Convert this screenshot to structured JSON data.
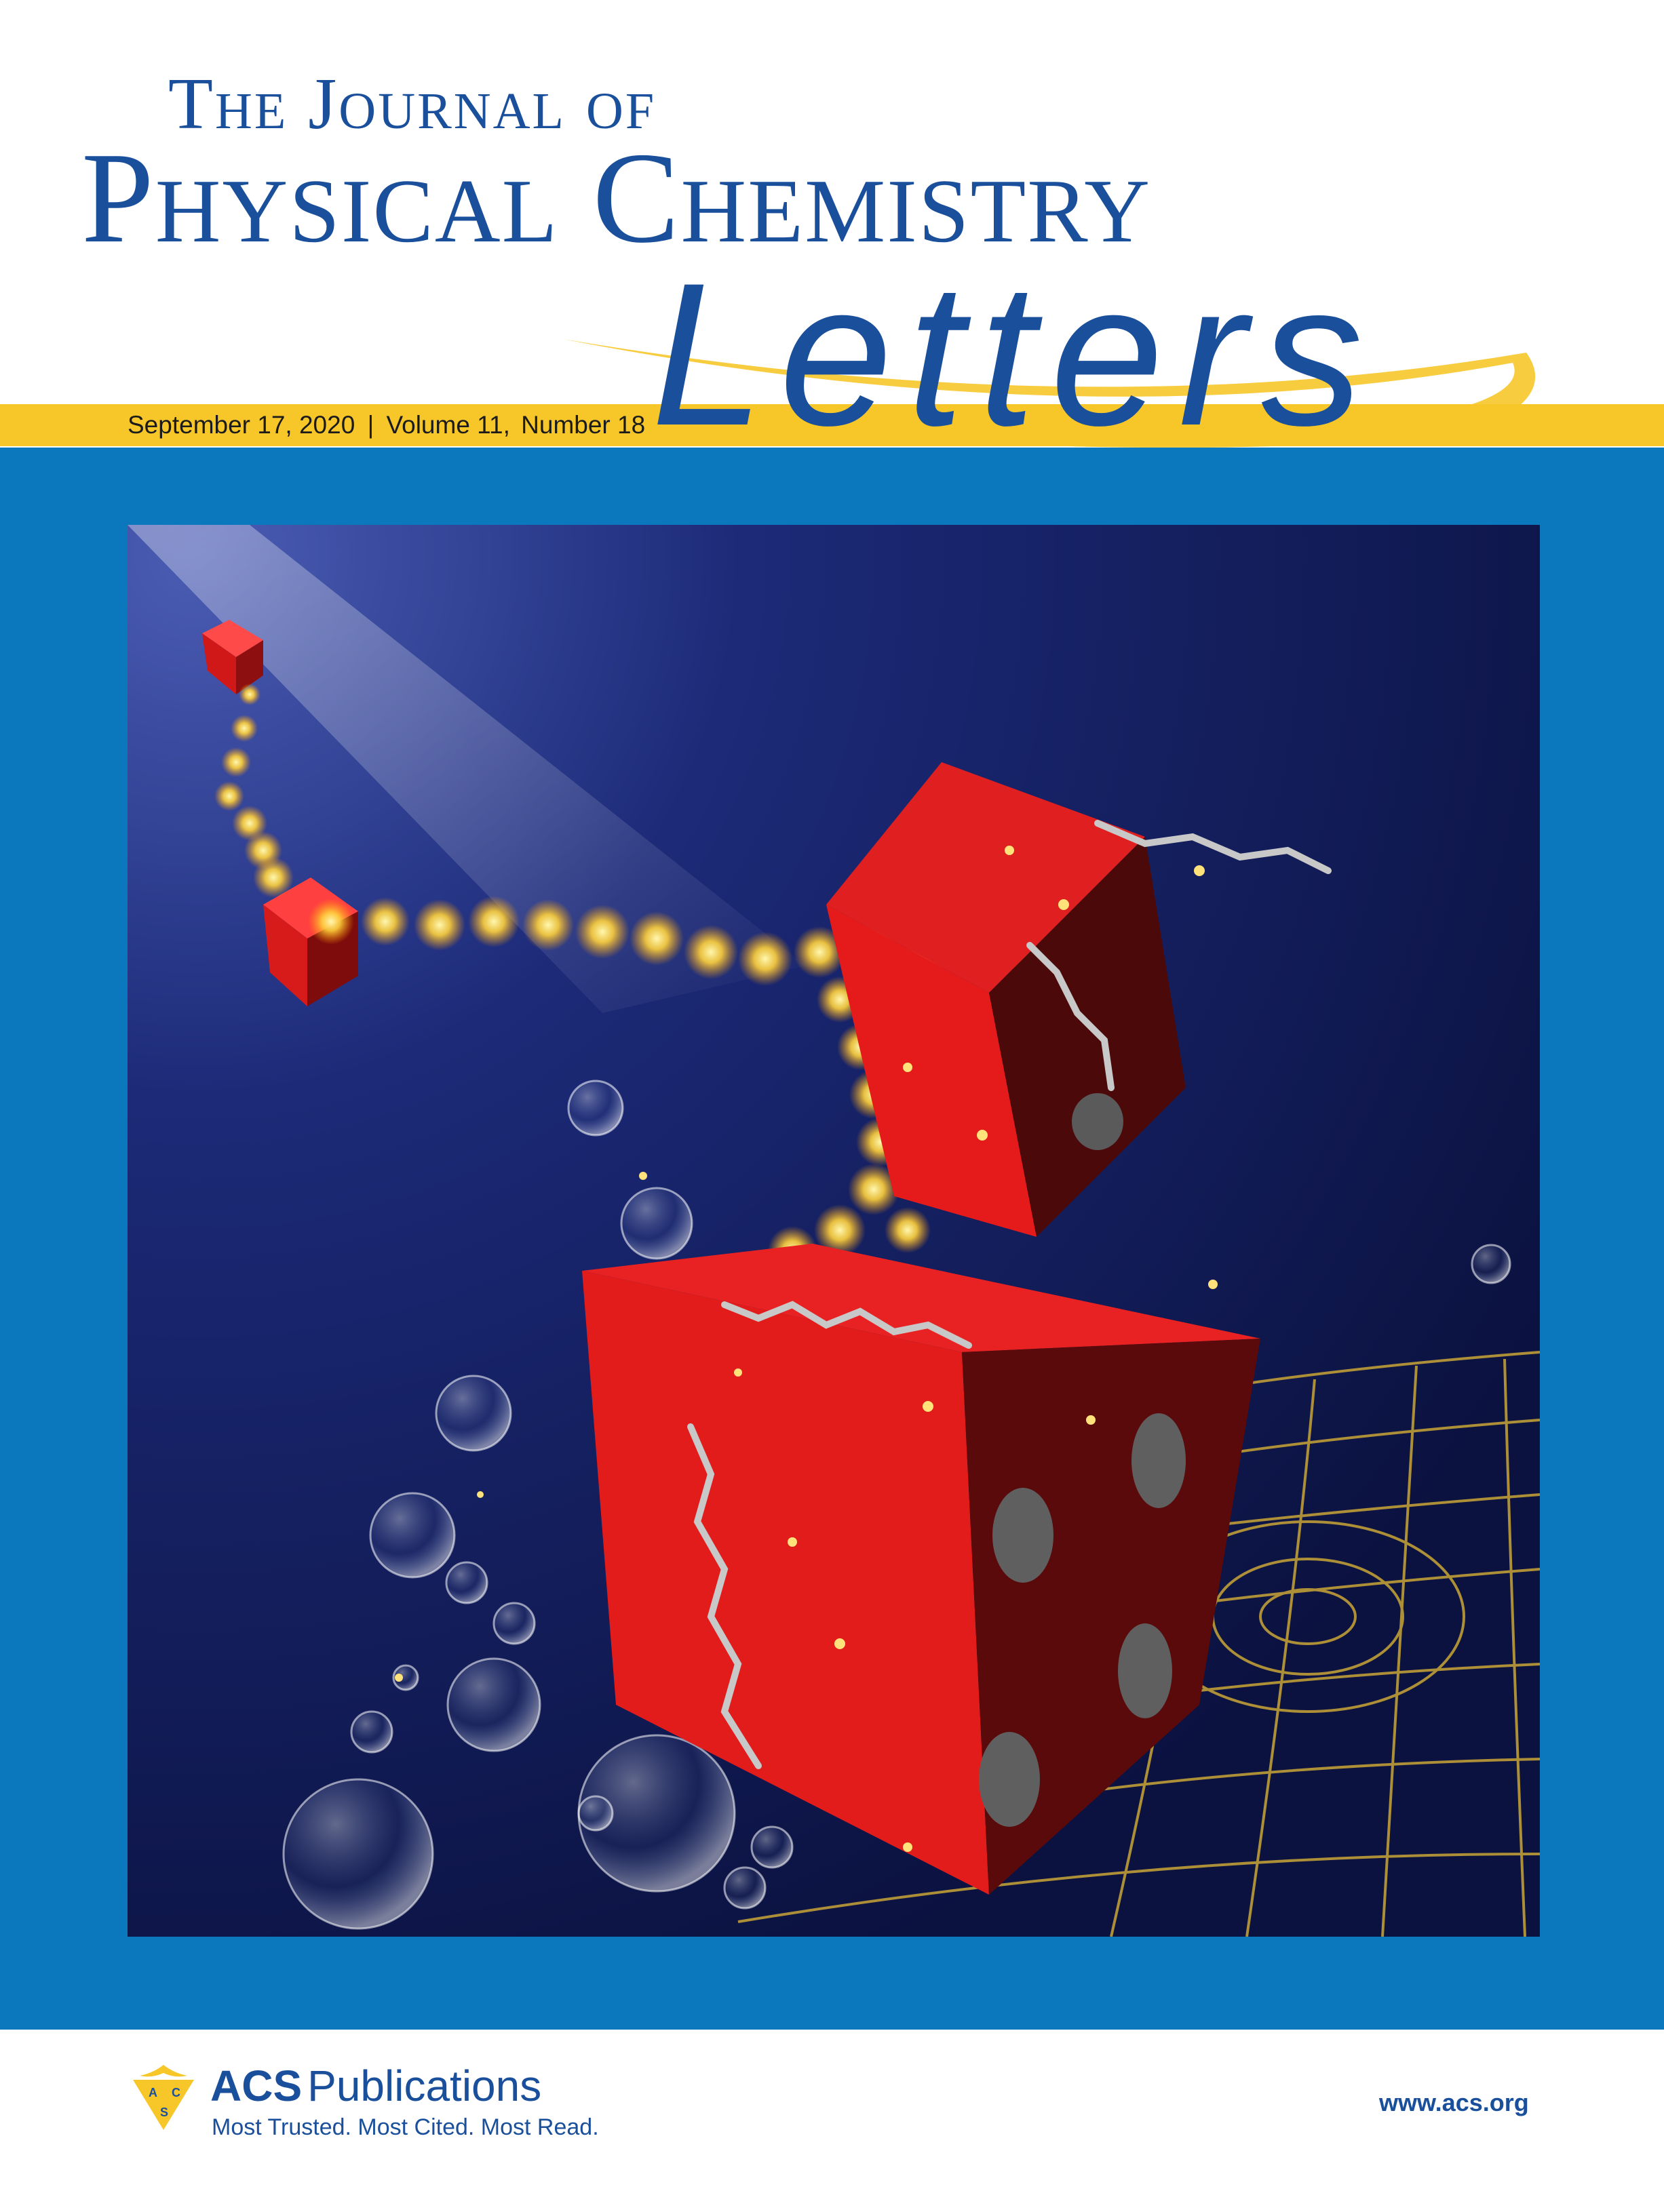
{
  "journal": {
    "title_line1": "The Journal of",
    "title_line2": "Physical Chemistry",
    "title_line3": "Letters"
  },
  "issue": {
    "date": "September 17, 2020",
    "separator": "|",
    "volume": "Volume 11,",
    "number": "Number 18"
  },
  "publisher": {
    "name_bold": "ACS",
    "name_rest": "Publications",
    "tagline": "Most Trusted. Most Cited. Most Read.",
    "website": "www.acs.org",
    "logo_letters": [
      "A",
      "C",
      "S"
    ]
  },
  "colors": {
    "brand_blue": "#1a4f9c",
    "panel_blue": "#0b78be",
    "band_yellow": "#f7c72a",
    "die_red": "#e01e1e",
    "background_navy": "#101a4a",
    "glow_gold": "#ffd23c"
  }
}
